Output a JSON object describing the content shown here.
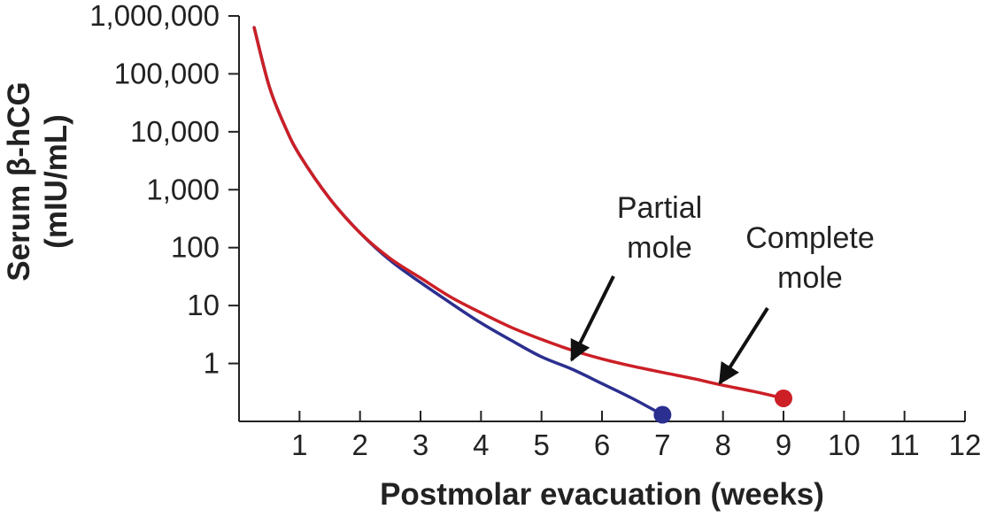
{
  "chart_data": {
    "type": "line",
    "xlabel": "Postmolar evacuation (weeks)",
    "ylabel_line1": "Serum β-hCG",
    "ylabel_line2": "(mIU/mL)",
    "xlim": [
      0,
      12
    ],
    "ylim": [
      0.1,
      1000000
    ],
    "yscale": "log",
    "xticks": [
      1,
      2,
      3,
      4,
      5,
      6,
      7,
      8,
      9,
      10,
      11,
      12
    ],
    "yticks": [
      {
        "value": 1,
        "label": "1"
      },
      {
        "value": 10,
        "label": "10"
      },
      {
        "value": 100,
        "label": "100"
      },
      {
        "value": 1000,
        "label": "1,000"
      },
      {
        "value": 10000,
        "label": "10,000"
      },
      {
        "value": 100000,
        "label": "100,000"
      },
      {
        "value": 1000000,
        "label": "1,000,000"
      }
    ],
    "series": [
      {
        "name": "Partial mole",
        "color": "#2b2f8f",
        "x": [
          0.25,
          0.5,
          0.75,
          1,
          1.5,
          2,
          2.5,
          3,
          3.5,
          4,
          4.5,
          5,
          5.5,
          6,
          6.5,
          7
        ],
        "y": [
          630000,
          60000,
          13000,
          4000,
          700,
          180,
          60,
          25,
          11,
          5,
          2.5,
          1.3,
          0.8,
          0.45,
          0.25,
          0.13
        ]
      },
      {
        "name": "Complete mole",
        "color": "#cc1f26",
        "x": [
          0.25,
          0.5,
          0.75,
          1,
          1.5,
          2,
          2.5,
          3,
          3.5,
          4,
          4.5,
          5,
          5.5,
          6,
          6.5,
          7,
          7.5,
          8,
          8.5,
          9
        ],
        "y": [
          630000,
          60000,
          13000,
          4000,
          700,
          180,
          65,
          30,
          14,
          7.5,
          4.2,
          2.6,
          1.7,
          1.2,
          0.9,
          0.7,
          0.55,
          0.42,
          0.33,
          0.25
        ]
      }
    ],
    "annotations": [
      {
        "text_lines": [
          "Partial",
          "mole"
        ],
        "points_to": {
          "x": 5.5,
          "y": 1.0
        }
      },
      {
        "text_lines": [
          "Complete",
          "mole"
        ],
        "points_to": {
          "x": 7.95,
          "y": 0.4
        }
      }
    ]
  }
}
